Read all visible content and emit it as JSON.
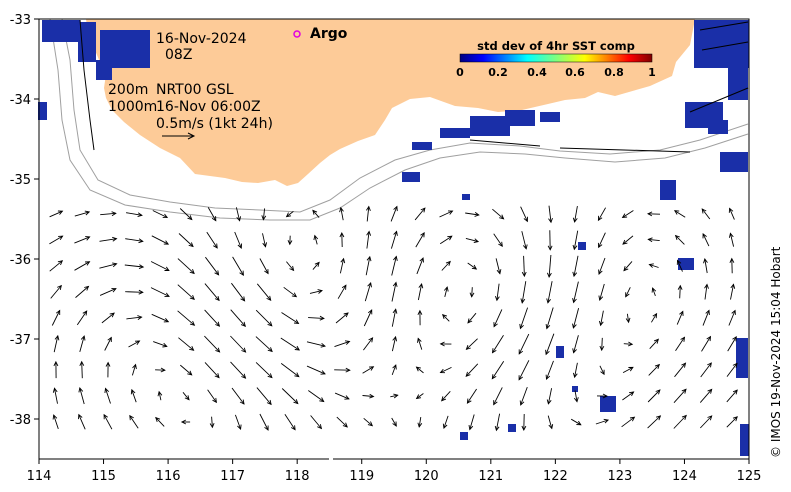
{
  "map": {
    "date": "16-Nov-2024",
    "time": "08Z",
    "contour_label_1": "200m",
    "contour_label_2": "1000m",
    "source_label": "NRT00 GSL",
    "source_time": "16-Nov 06:00Z",
    "scale_label": "0.5m/s (1kt 24h)",
    "argo_label": "Argo",
    "credit": "© IMOS 19-Nov-2024 15:04 Hobart",
    "colors": {
      "land": "#fdcb98",
      "ocean": "#ffffff",
      "sst_patch": "#1a2fa8",
      "argo_marker": "#e000e0",
      "contour": "#a0a0a0",
      "arrow": "#000000"
    }
  },
  "legend": {
    "title": "std dev of 4hr SST comp",
    "ticks": [
      "0",
      "0.2",
      "0.4",
      "0.6",
      "0.8",
      "1"
    ]
  },
  "axes": {
    "x_ticks": [
      "114",
      "115",
      "116",
      "117",
      "118",
      "119",
      "120",
      "121",
      "122",
      "123",
      "124",
      "125"
    ],
    "y_ticks": [
      "-33",
      "-34",
      "-35",
      "-36",
      "-37",
      "-38"
    ],
    "x_range": [
      114,
      125
    ],
    "y_range": [
      -38.5,
      -33
    ]
  }
}
